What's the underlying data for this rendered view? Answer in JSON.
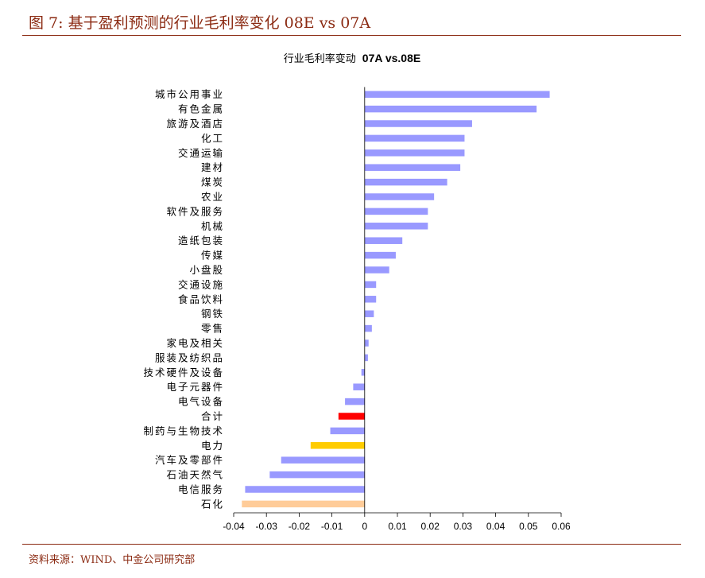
{
  "figure": {
    "title": "图 7:  基于盈利预测的行业毛利率变化    08E vs 07A",
    "source": "资料来源：WIND、中金公司研究部"
  },
  "chart_data": {
    "type": "bar",
    "orientation": "horizontal",
    "title": "行业毛利率变动",
    "title_bold": "07A vs.08E",
    "categories": [
      "城市公用事业",
      "有色金属",
      "旅游及酒店",
      "化工",
      "交通运输",
      "建材",
      "煤炭",
      "农业",
      "软件及服务",
      "机械",
      "造纸包装",
      "传媒",
      "小盘股",
      "交通设施",
      "食品饮料",
      "钢铁",
      "零售",
      "家电及相关",
      "服装及纺织品",
      "技术硬件及设备",
      "电子元器件",
      "电气设备",
      "合计",
      "制药与生物技术",
      "电力",
      "汽车及零部件",
      "石油天然气",
      "电信服务",
      "石化"
    ],
    "values": [
      0.0565,
      0.0525,
      0.0328,
      0.0305,
      0.0305,
      0.0292,
      0.0252,
      0.0212,
      0.0193,
      0.0193,
      0.0115,
      0.0095,
      0.0075,
      0.0035,
      0.0035,
      0.0028,
      0.0022,
      0.0012,
      0.001,
      -0.001,
      -0.0035,
      -0.006,
      -0.008,
      -0.0105,
      -0.0165,
      -0.0255,
      -0.029,
      -0.0365,
      -0.0375
    ],
    "colors": [
      "#9999ff",
      "#9999ff",
      "#9999ff",
      "#9999ff",
      "#9999ff",
      "#9999ff",
      "#9999ff",
      "#9999ff",
      "#9999ff",
      "#9999ff",
      "#9999ff",
      "#9999ff",
      "#9999ff",
      "#9999ff",
      "#9999ff",
      "#9999ff",
      "#9999ff",
      "#9999ff",
      "#9999ff",
      "#9999ff",
      "#9999ff",
      "#9999ff",
      "#ff0000",
      "#9999ff",
      "#ffcc00",
      "#9999ff",
      "#9999ff",
      "#9999ff",
      "#ffcc99"
    ],
    "xlim": [
      -0.04,
      0.06
    ],
    "xticks": [
      -0.04,
      -0.03,
      -0.02,
      -0.01,
      0,
      0.01,
      0.02,
      0.03,
      0.04,
      0.05,
      0.06
    ],
    "xtick_labels": [
      "-0.04",
      "-0.03",
      "-0.02",
      "-0.01",
      "0",
      "0.01",
      "0.02",
      "0.03",
      "0.04",
      "0.05",
      "0.06"
    ],
    "xlabel": "",
    "ylabel": "",
    "grid": false,
    "legend": "none"
  }
}
